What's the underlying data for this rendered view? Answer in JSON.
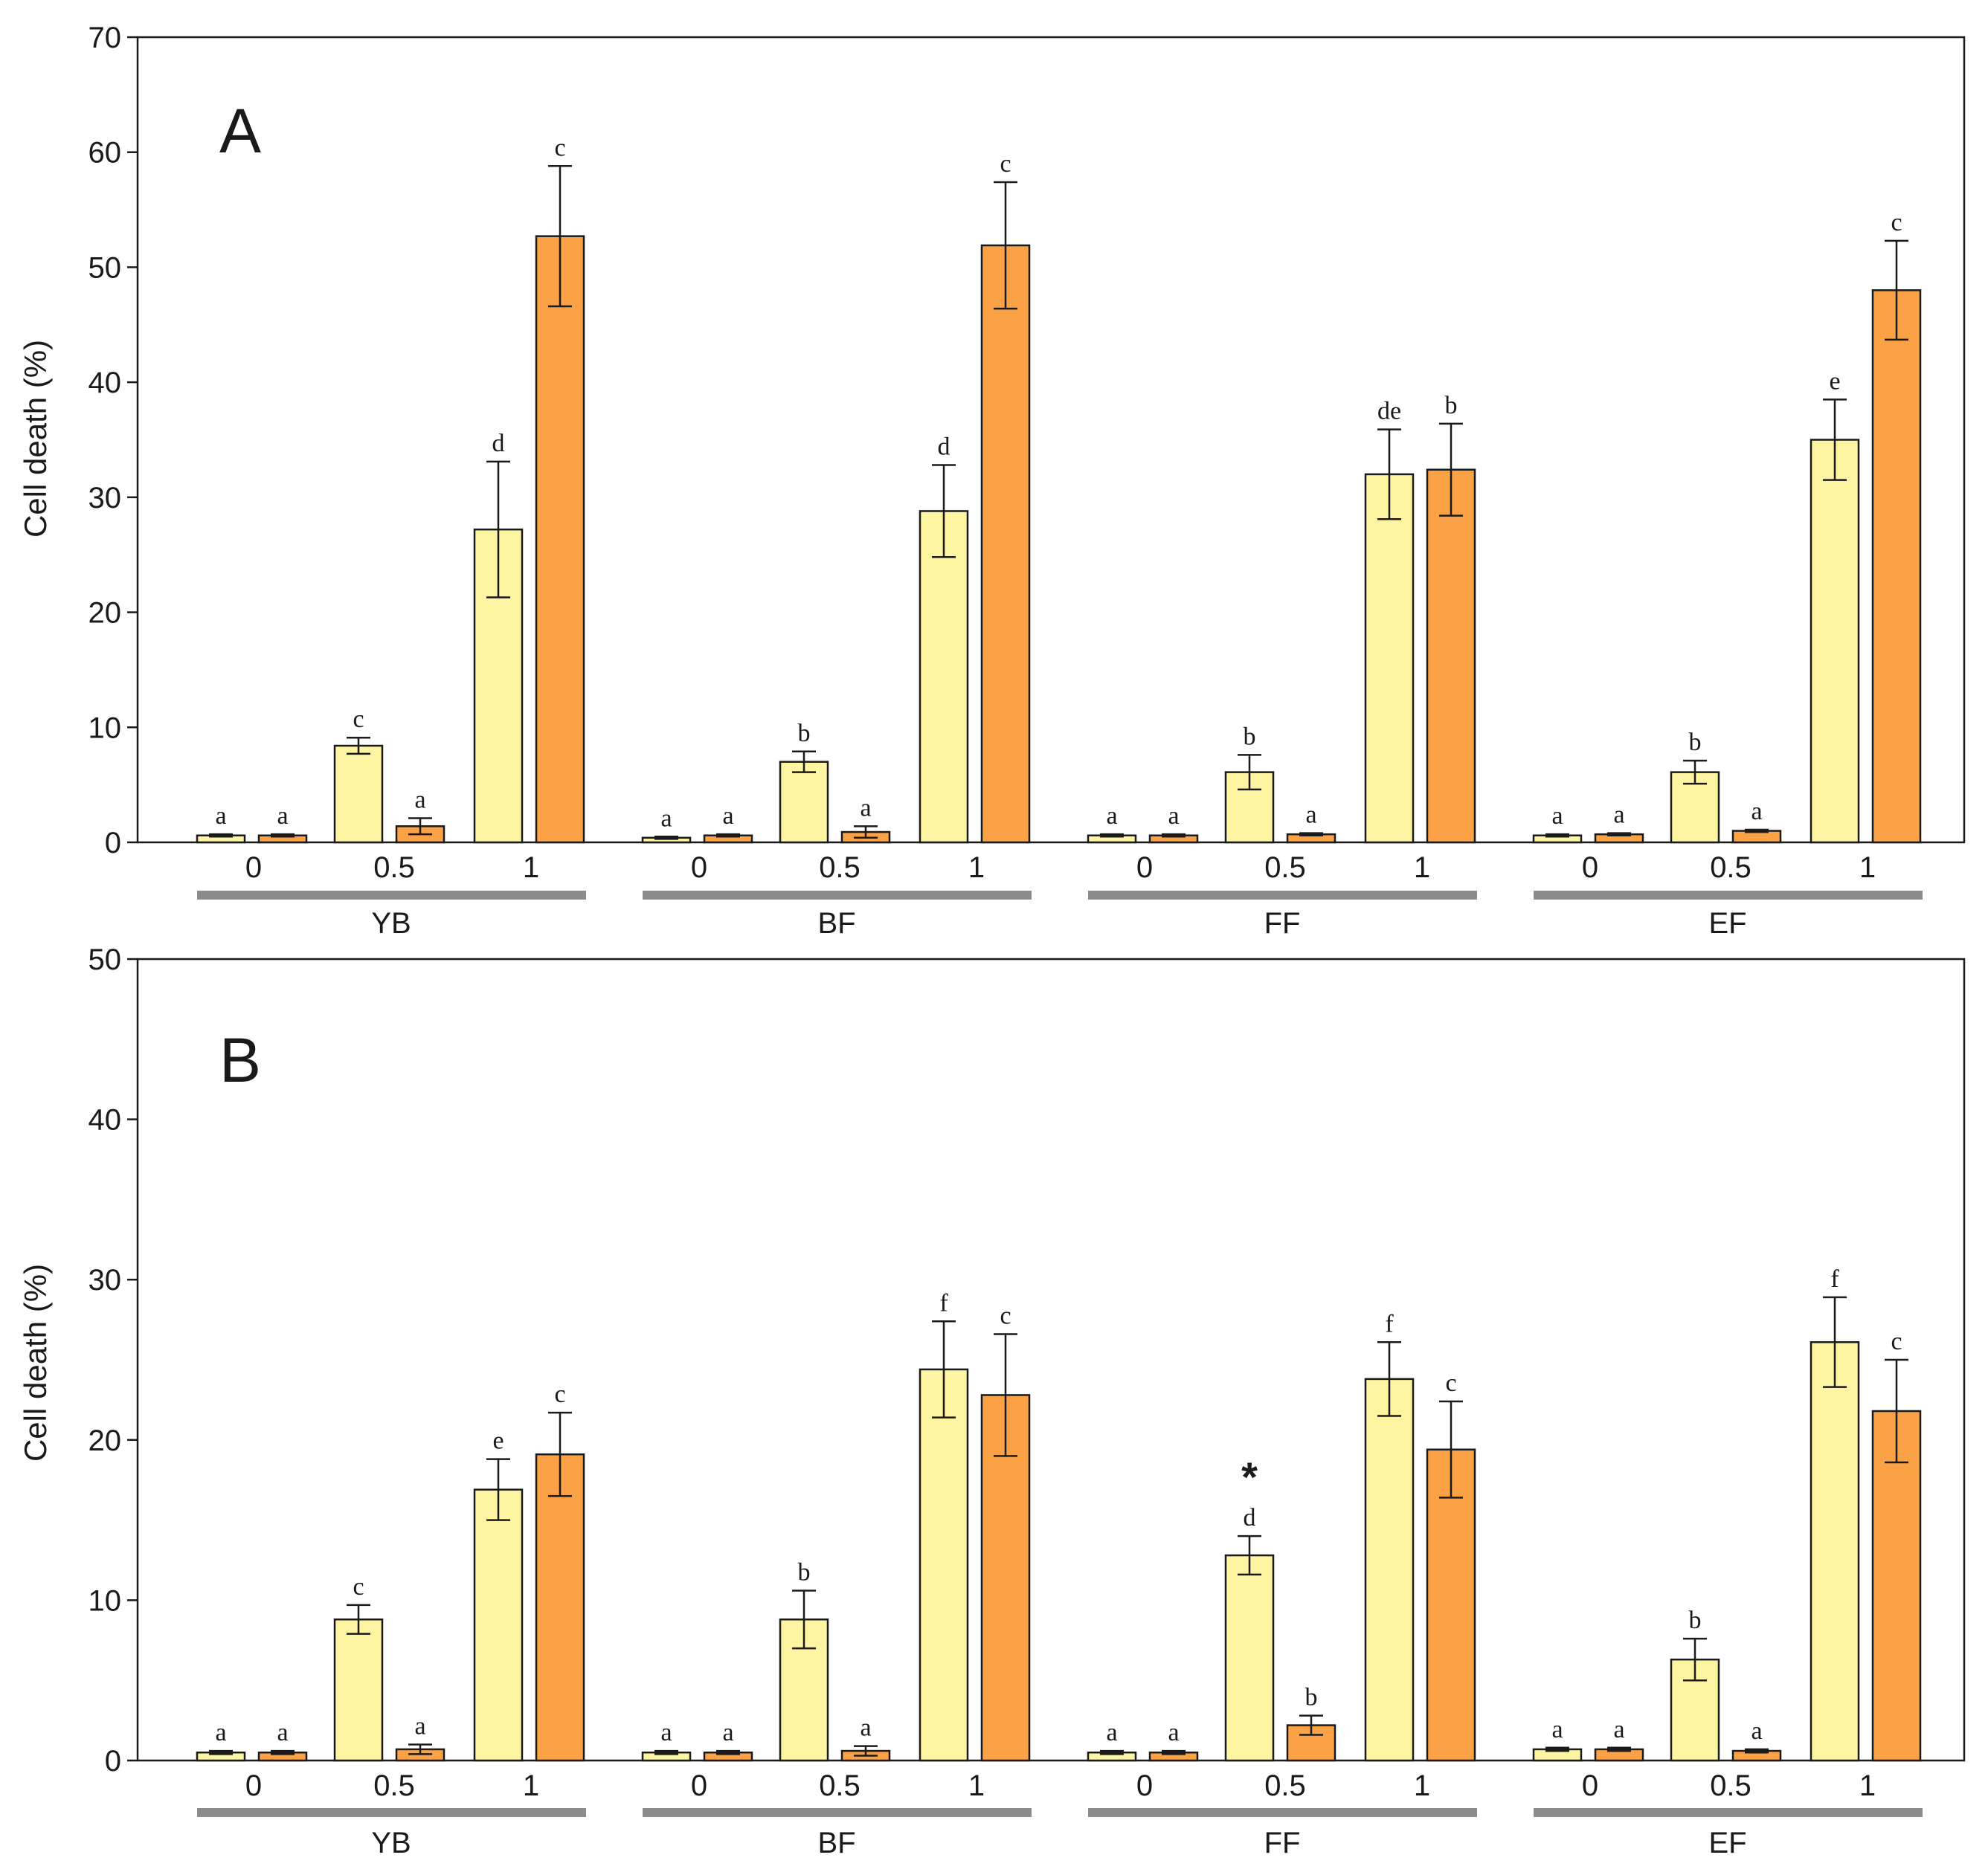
{
  "colors": {
    "series1": "#fdf5a2",
    "series2": "#fba246",
    "group_bar": "#8c8c8c",
    "stroke": "#1a1a1a"
  },
  "chart_data": [
    {
      "type": "bar",
      "panel": "A",
      "ylabel": "Cell death (%)",
      "ylim": [
        0,
        70
      ],
      "yticks": [
        0,
        10,
        20,
        30,
        40,
        50,
        60,
        70
      ],
      "groups": [
        "YB",
        "BF",
        "FF",
        "EF"
      ],
      "doses": [
        "0",
        "0.5",
        "1"
      ],
      "series": [
        {
          "name": "series 1",
          "values": [
            [
              0.6,
              8.4,
              27.2
            ],
            [
              0.4,
              7.0,
              28.8
            ],
            [
              0.6,
              6.1,
              32.0
            ],
            [
              0.6,
              6.1,
              35.0
            ]
          ],
          "errors": [
            [
              0.1,
              0.7,
              5.9
            ],
            [
              0.1,
              0.9,
              4.0
            ],
            [
              0.1,
              1.5,
              3.9
            ],
            [
              0.1,
              1.0,
              3.5
            ]
          ],
          "labels": [
            [
              "a",
              "c",
              "d"
            ],
            [
              "a",
              "b",
              "d"
            ],
            [
              "a",
              "b",
              "de"
            ],
            [
              "a",
              "b",
              "e"
            ]
          ]
        },
        {
          "name": "series 2",
          "values": [
            [
              0.6,
              1.4,
              52.7
            ],
            [
              0.6,
              0.9,
              51.9
            ],
            [
              0.6,
              0.7,
              32.4
            ],
            [
              0.7,
              1.0,
              48.0
            ]
          ],
          "errors": [
            [
              0.1,
              0.7,
              6.1
            ],
            [
              0.1,
              0.5,
              5.5
            ],
            [
              0.1,
              0.1,
              4.0
            ],
            [
              0.1,
              0.1,
              4.3
            ]
          ],
          "labels": [
            [
              "a",
              "a",
              "c"
            ],
            [
              "a",
              "a",
              "c"
            ],
            [
              "a",
              "a",
              "b"
            ],
            [
              "a",
              "a",
              "c"
            ]
          ]
        }
      ],
      "annotations": []
    },
    {
      "type": "bar",
      "panel": "B",
      "ylabel": "Cell death (%)",
      "ylim": [
        0,
        50
      ],
      "yticks": [
        0,
        10,
        20,
        30,
        40,
        50
      ],
      "groups": [
        "YB",
        "BF",
        "FF",
        "EF"
      ],
      "doses": [
        "0",
        "0.5",
        "1"
      ],
      "series": [
        {
          "name": "series 1",
          "values": [
            [
              0.5,
              8.8,
              16.9
            ],
            [
              0.5,
              8.8,
              24.4
            ],
            [
              0.5,
              12.8,
              23.8
            ],
            [
              0.7,
              6.3,
              26.1
            ]
          ],
          "errors": [
            [
              0.1,
              0.9,
              1.9
            ],
            [
              0.1,
              1.8,
              3.0
            ],
            [
              0.1,
              1.2,
              2.3
            ],
            [
              0.1,
              1.3,
              2.8
            ]
          ],
          "labels": [
            [
              "a",
              "c",
              "e"
            ],
            [
              "a",
              "b",
              "f"
            ],
            [
              "a",
              "d",
              "f"
            ],
            [
              "a",
              "b",
              "f"
            ]
          ]
        },
        {
          "name": "series 2",
          "values": [
            [
              0.5,
              0.7,
              19.1
            ],
            [
              0.5,
              0.6,
              22.8
            ],
            [
              0.5,
              2.2,
              19.4
            ],
            [
              0.7,
              0.6,
              21.8
            ]
          ],
          "errors": [
            [
              0.1,
              0.3,
              2.6
            ],
            [
              0.1,
              0.3,
              3.8
            ],
            [
              0.1,
              0.6,
              3.0
            ],
            [
              0.1,
              0.1,
              3.2
            ]
          ],
          "labels": [
            [
              "a",
              "a",
              "c"
            ],
            [
              "a",
              "a",
              "c"
            ],
            [
              "a",
              "b",
              "c"
            ],
            [
              "a",
              "a",
              "c"
            ]
          ]
        }
      ],
      "annotations": [
        {
          "group": 2,
          "dose": 1,
          "series": 0,
          "text": "*"
        }
      ]
    }
  ]
}
